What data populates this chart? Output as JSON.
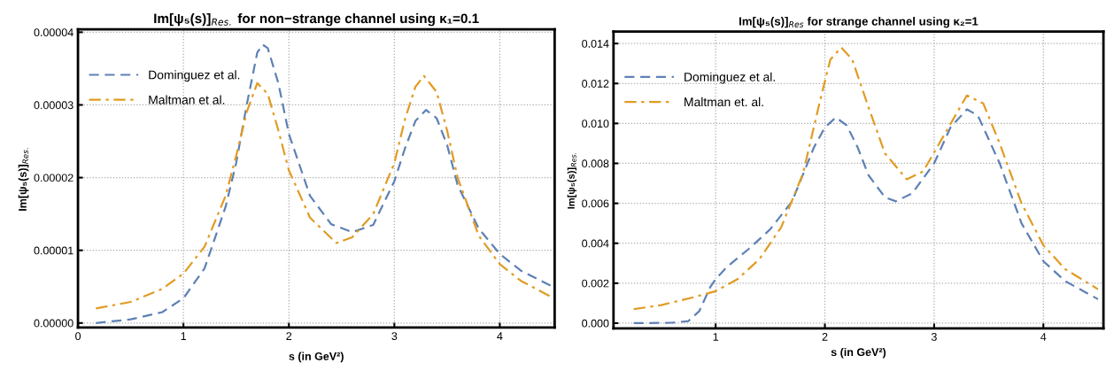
{
  "chart_data": [
    {
      "type": "line",
      "title": "Im[ψ₅(s)]$_{Res.}$ for non−strange channel using κ₁=0.1",
      "xlabel": "s (in GeV²)",
      "ylabel": "Im[ψ₅(s)]$_{Res.}$",
      "xlim": [
        0,
        4.52
      ],
      "ylim": [
        -6.3e-07,
        4.04e-05
      ],
      "xticks": [
        0,
        1,
        2,
        3,
        4
      ],
      "yticks": [
        {
          "value": 0,
          "label": "0.00000"
        },
        {
          "value": 1e-05,
          "label": "0.00001"
        },
        {
          "value": 2e-05,
          "label": "0.00002"
        },
        {
          "value": 3e-05,
          "label": "0.00003"
        },
        {
          "value": 4e-05,
          "label": "0.00004"
        }
      ],
      "grid": true,
      "legend": "top left",
      "series": [
        {
          "name": "Dominguez et al.",
          "color": "#5e81b5",
          "line_style": "dashed",
          "x": [
            0.17,
            0.5,
            0.8,
            1.0,
            1.2,
            1.4,
            1.5,
            1.6,
            1.7,
            1.75,
            1.8,
            1.9,
            2.0,
            2.2,
            2.4,
            2.6,
            2.8,
            3.0,
            3.1,
            3.2,
            3.3,
            3.4,
            3.5,
            3.6,
            3.8,
            4.0,
            4.2,
            4.5
          ],
          "values": [
            0,
            5e-07,
            1.5e-06,
            3.4e-06,
            7.5e-06,
            1.6e-05,
            2.2e-05,
            3e-05,
            3.72e-05,
            3.83e-05,
            3.78e-05,
            3.3e-05,
            2.6e-05,
            1.75e-05,
            1.36e-05,
            1.25e-05,
            1.35e-05,
            1.95e-05,
            2.4e-05,
            2.78e-05,
            2.93e-05,
            2.82e-05,
            2.45e-05,
            1.9e-05,
            1.3e-05,
            9.5e-06,
            7.2e-06,
            5e-06
          ]
        },
        {
          "name": "Maltman et al.",
          "color": "#e19c24",
          "line_style": "dashdot",
          "x": [
            0.17,
            0.5,
            0.8,
            1.0,
            1.2,
            1.4,
            1.5,
            1.6,
            1.7,
            1.8,
            1.9,
            2.0,
            2.2,
            2.45,
            2.6,
            2.8,
            3.0,
            3.1,
            3.2,
            3.28,
            3.4,
            3.5,
            3.6,
            3.8,
            4.0,
            4.2,
            4.5
          ],
          "values": [
            2e-06,
            2.9e-06,
            4.7e-06,
            6.8e-06,
            1.05e-05,
            1.75e-05,
            2.3e-05,
            2.9e-05,
            3.3e-05,
            3.15e-05,
            2.65e-05,
            2.1e-05,
            1.45e-05,
            1.1e-05,
            1.18e-05,
            1.5e-05,
            2.2e-05,
            2.8e-05,
            3.25e-05,
            3.4e-05,
            3.18e-05,
            2.65e-05,
            2e-05,
            1.2e-05,
            8.1e-06,
            5.8e-06,
            3.5e-06
          ]
        }
      ]
    },
    {
      "type": "line",
      "title": "Im[ψ₅(s)]$_{Res}$ for strange channel using κ₂=1",
      "xlabel": "s (in GeV²)",
      "ylabel": "Im[ψ₅(s)]$_{Res.}$",
      "xlim": [
        0.065,
        4.55
      ],
      "ylim": [
        -0.00026,
        0.0146
      ],
      "xticks": [
        1,
        2,
        3,
        4
      ],
      "yticks": [
        {
          "value": 0,
          "label": "0.000"
        },
        {
          "value": 0.002,
          "label": "0.002"
        },
        {
          "value": 0.004,
          "label": "0.004"
        },
        {
          "value": 0.006,
          "label": "0.006"
        },
        {
          "value": 0.008,
          "label": "0.008"
        },
        {
          "value": 0.01,
          "label": "0.010"
        },
        {
          "value": 0.012,
          "label": "0.012"
        },
        {
          "value": 0.014,
          "label": "0.014"
        }
      ],
      "grid": true,
      "legend": "top left",
      "series": [
        {
          "name": "Dominguez et al.",
          "color": "#5e81b5",
          "line_style": "dashed",
          "x": [
            0.25,
            0.6,
            0.75,
            0.85,
            0.95,
            1.0,
            1.1,
            1.3,
            1.5,
            1.7,
            1.9,
            2.0,
            2.1,
            2.2,
            2.3,
            2.4,
            2.55,
            2.65,
            2.8,
            3.0,
            3.15,
            3.3,
            3.4,
            3.6,
            3.8,
            4.0,
            4.2,
            4.5
          ],
          "values": [
            0,
            2e-05,
            0.0001,
            0.0006,
            0.0018,
            0.0022,
            0.0028,
            0.0037,
            0.0047,
            0.0061,
            0.0088,
            0.0098,
            0.0103,
            0.0099,
            0.0088,
            0.0074,
            0.0063,
            0.0061,
            0.0065,
            0.008,
            0.0098,
            0.0107,
            0.0104,
            0.008,
            0.005,
            0.0031,
            0.0021,
            0.0012
          ]
        },
        {
          "name": "Maltman et. al.",
          "color": "#e19c24",
          "line_style": "dashdot",
          "x": [
            0.25,
            0.5,
            0.8,
            1.0,
            1.2,
            1.4,
            1.6,
            1.8,
            1.95,
            2.05,
            2.15,
            2.25,
            2.4,
            2.55,
            2.75,
            2.9,
            3.1,
            3.3,
            3.45,
            3.6,
            3.8,
            4.0,
            4.2,
            4.5
          ],
          "values": [
            0.0007,
            0.0009,
            0.0013,
            0.0016,
            0.0022,
            0.0032,
            0.0048,
            0.0075,
            0.011,
            0.0132,
            0.0138,
            0.0132,
            0.0108,
            0.0085,
            0.0072,
            0.0076,
            0.0095,
            0.0114,
            0.011,
            0.009,
            0.006,
            0.0039,
            0.0027,
            0.0017
          ]
        }
      ]
    }
  ]
}
